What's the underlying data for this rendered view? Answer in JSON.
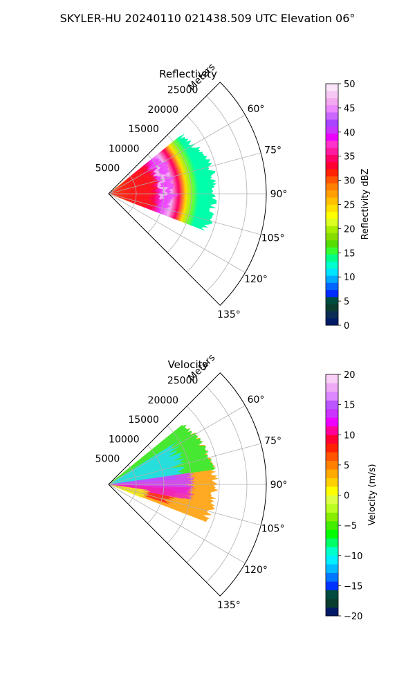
{
  "figure": {
    "suptitle": "SKYLER-HU  20240110  021438.509 UTC Elevation 06°"
  },
  "chart_data": [
    {
      "type": "polar-sector",
      "title": "Reflectivity",
      "radial_label": "Meters",
      "radial_ticks": [
        5000,
        10000,
        15000,
        20000,
        25000
      ],
      "rmax": 28500,
      "azimuth_range": [
        45,
        135
      ],
      "azimuth_ticks": [
        "60°",
        "75°",
        "90°",
        "105°",
        "120°",
        "135°"
      ],
      "azimuth_tick_values": [
        60,
        75,
        90,
        105,
        120,
        135
      ],
      "grid": true,
      "colorbar": {
        "label": "Reflectivity dBZ",
        "vmin": 0,
        "vmax": 50,
        "ticks": [
          "0",
          "5",
          "10",
          "15",
          "20",
          "25",
          "30",
          "35",
          "40",
          "45",
          "50"
        ],
        "colors": [
          "#031a66",
          "#0a2c55",
          "#0a3d2d",
          "#004d40",
          "#002bff",
          "#0066ff",
          "#00aaff",
          "#00e5ff",
          "#00ffcc",
          "#00ff88",
          "#33ff33",
          "#55dd00",
          "#88dd00",
          "#aaee00",
          "#ddff22",
          "#ffff00",
          "#ffe000",
          "#ffc000",
          "#ffa000",
          "#ff8000",
          "#ff5500",
          "#ff2200",
          "#ff0033",
          "#ff0066",
          "#ff1aa0",
          "#ff33cc",
          "#ee00ff",
          "#cc33ff",
          "#aa44ff",
          "#cc66ff",
          "#ee88ff",
          "#f4aaf0",
          "#f8c8f4",
          "#fce4fa"
        ]
      }
    },
    {
      "type": "polar-sector",
      "title": "Velocity",
      "radial_label": "Meters",
      "radial_ticks": [
        5000,
        10000,
        15000,
        20000,
        25000
      ],
      "rmax": 28500,
      "azimuth_range": [
        45,
        135
      ],
      "azimuth_ticks": [
        "60°",
        "75°",
        "90°",
        "105°",
        "120°",
        "135°"
      ],
      "azimuth_tick_values": [
        60,
        75,
        90,
        105,
        120,
        135
      ],
      "grid": true,
      "colorbar": {
        "label": "Velocity (m/s)",
        "vmin": -20,
        "vmax": 20,
        "ticks": [
          "-20",
          "-15",
          "-10",
          "-5",
          "0",
          "5",
          "10",
          "15",
          "20"
        ],
        "colors": [
          "#031a66",
          "#0a3d2d",
          "#004d40",
          "#0033ff",
          "#0077ff",
          "#00bbff",
          "#00eeff",
          "#00ffcc",
          "#00ff66",
          "#00ff00",
          "#44ee00",
          "#88ee00",
          "#bbff22",
          "#ddff44",
          "#ffff00",
          "#ffd000",
          "#ffaa00",
          "#ff8000",
          "#ff5500",
          "#ff2200",
          "#ff0033",
          "#ff0099",
          "#ee00ff",
          "#cc33ff",
          "#bb55ff",
          "#dd88ff",
          "#eeaaf4",
          "#f8d0f6"
        ]
      }
    }
  ]
}
